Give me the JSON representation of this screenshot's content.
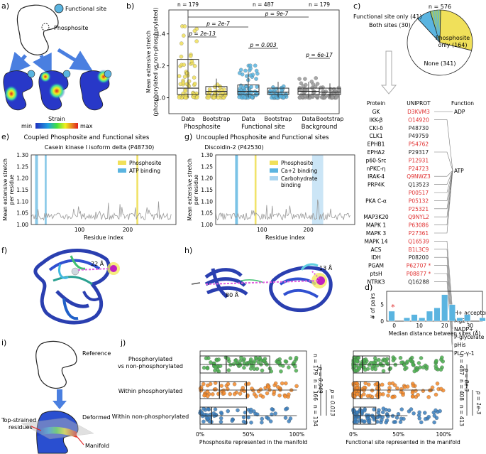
{
  "panels": {
    "a": {
      "letter": "a)",
      "label_functional": "Functional site",
      "label_phospho": "Phosphosite",
      "cbar_title": "Strain",
      "cbar_min": "min",
      "cbar_max": "max"
    },
    "b": {
      "letter": "b)",
      "ylabel": "Mean extensive stretch\n(phosphorylated vs non-phosphorylated)",
      "yticks": [
        "1.0",
        "1.2",
        "1.4"
      ],
      "counts": [
        "n = 179",
        "n = 487",
        "n = 179"
      ],
      "pvals": [
        "p = 9e-7",
        "p = 2e-7",
        "p = 2e-13",
        "p = 0.003",
        "p = 6e-17"
      ],
      "xticks": [
        "Data",
        "Bootstrap",
        "Data",
        "Bootstrap",
        "Data",
        "Bootstrap"
      ],
      "groups": [
        "Phosphosite",
        "Functional site",
        "Background"
      ]
    },
    "c": {
      "letter": "c)",
      "n": "n = 576",
      "lbl_func_only": "Functional site only (41)",
      "lbl_both": "Both sites (30)",
      "lbl_phospho": "Phosphosite",
      "lbl_phospho2": "only (164)",
      "lbl_none": "None (341)",
      "table_headers": [
        "Protein",
        "UNIPROT",
        "Function"
      ],
      "rows": [
        {
          "protein": "GK",
          "uniprot": "D3KVM3",
          "red": true
        },
        {
          "protein": "IKK-β",
          "uniprot": "O14920",
          "red": true
        },
        {
          "protein": "CKI-δ",
          "uniprot": "P48730",
          "red": false
        },
        {
          "protein": "CLK1",
          "uniprot": "P49759",
          "red": false
        },
        {
          "protein": "EPHB1",
          "uniprot": "P54762",
          "red": true
        },
        {
          "protein": "EPHA2",
          "uniprot": "P29317",
          "red": false
        },
        {
          "protein": "p60-Src",
          "uniprot": "P12931",
          "red": true
        },
        {
          "protein": "nPKC-η",
          "uniprot": "P24723",
          "red": true
        },
        {
          "protein": "IRAK-4",
          "uniprot": "Q9NWZ3",
          "red": true
        },
        {
          "protein": "PRP4K",
          "uniprot": "Q13523",
          "red": false
        },
        {
          "protein": "",
          "uniprot": "P00517",
          "red": true
        },
        {
          "protein": "PKA C-α",
          "uniprot": "P05132",
          "red": true
        },
        {
          "protein": "",
          "uniprot": "P25321",
          "red": true
        },
        {
          "protein": "MAP3K20",
          "uniprot": "Q9NYL2",
          "red": true
        },
        {
          "protein": "MAPK 1",
          "uniprot": "P63086",
          "red": true
        },
        {
          "protein": "MAPK 3",
          "uniprot": "P27361",
          "red": true
        },
        {
          "protein": "MAPK 14",
          "uniprot": "Q16539",
          "red": true
        },
        {
          "protein": "ACS",
          "uniprot": "B1L3C9",
          "red": true
        },
        {
          "protein": "IDH",
          "uniprot": "P08200",
          "red": false
        },
        {
          "protein": "PGAM",
          "uniprot": "P62707 *",
          "red": true
        },
        {
          "protein": "ptsH",
          "uniprot": "P08877 *",
          "red": true
        },
        {
          "protein": "NTRK3",
          "uniprot": "Q16288",
          "red": false
        }
      ],
      "functions": [
        "ADP",
        "ATP",
        "H+ acceptor",
        "Mg2+",
        "NADP+",
        "P-glycerate",
        "pHis",
        "PLC-γ-1"
      ]
    },
    "d": {
      "letter": "d)",
      "ylabel": "# of pairs",
      "xlabel": "Median distance between sites (Å)",
      "yticks": [
        "0",
        "5"
      ],
      "xticks": [
        "0",
        "10",
        "20",
        "30"
      ],
      "star": "*"
    },
    "e": {
      "letter": "e)",
      "header": "Coupled Phosphosite and Functional sites",
      "subtitle": "Casein kinase I isoform delta (P48730)",
      "ylabel": "Mean extensive stretch\nper residue",
      "xlabel": "Residue index",
      "yticks": [
        "1.00",
        "1.05",
        "1.10",
        "1.15",
        "1.20",
        "1.25",
        "1.30"
      ],
      "xticks": [
        "100",
        "200"
      ],
      "legend": [
        "Phosphosite",
        "ATP binding"
      ]
    },
    "f": {
      "letter": "f)",
      "dist": "22 Å"
    },
    "g": {
      "letter": "g)",
      "header": "Uncoupled Phosphosite and Functional sites",
      "subtitle": "Discoidin-2 (P42530)",
      "ylabel": "Mean extensive stretch\nper residue",
      "xlabel": "Residue index",
      "yticks": [
        "1.00",
        "1.05",
        "1.10",
        "1.15",
        "1.20",
        "1.25",
        "1.30"
      ],
      "xticks": [
        "100",
        "200"
      ],
      "legend": [
        "Phosphosite",
        "Ca+2 binding",
        "Carbohydrate",
        "binding"
      ]
    },
    "h": {
      "letter": "h)",
      "dist1": "80 Å",
      "dist2": "13 Å"
    },
    "i": {
      "letter": "i)",
      "reference": "Reference",
      "deformed": "Deformed",
      "top": "Top-strained",
      "top2": "residues",
      "manifold": "Manifold"
    },
    "j": {
      "letter": "j)",
      "rows": [
        "Phosphorylated",
        "vs non-phosphorylated",
        "Within phosphorylated",
        "Within non-phosphorylated"
      ],
      "xlabel1": "Phosphosite represented in the manifold",
      "xlabel2": "Functional site represented in the manifold",
      "xticks": [
        "0%",
        "50%",
        "100%"
      ],
      "n_left": [
        "n = 179",
        "n = 166",
        "n = 134"
      ],
      "n_right": [
        "n = 487",
        "n = 408",
        "n = 413"
      ],
      "p_left": [
        "p = 0.049",
        "p = 0.013"
      ],
      "p_right": [
        "p = 8e-3",
        "p = 1e-3"
      ]
    }
  },
  "colors": {
    "yellow": "#f0e05a",
    "blue": "#5ab4e0",
    "gray": "#9a9a9a",
    "green": "#4caf50",
    "orange": "#f58a2a",
    "steel": "#3a7fbf",
    "red": "#e03030"
  }
}
